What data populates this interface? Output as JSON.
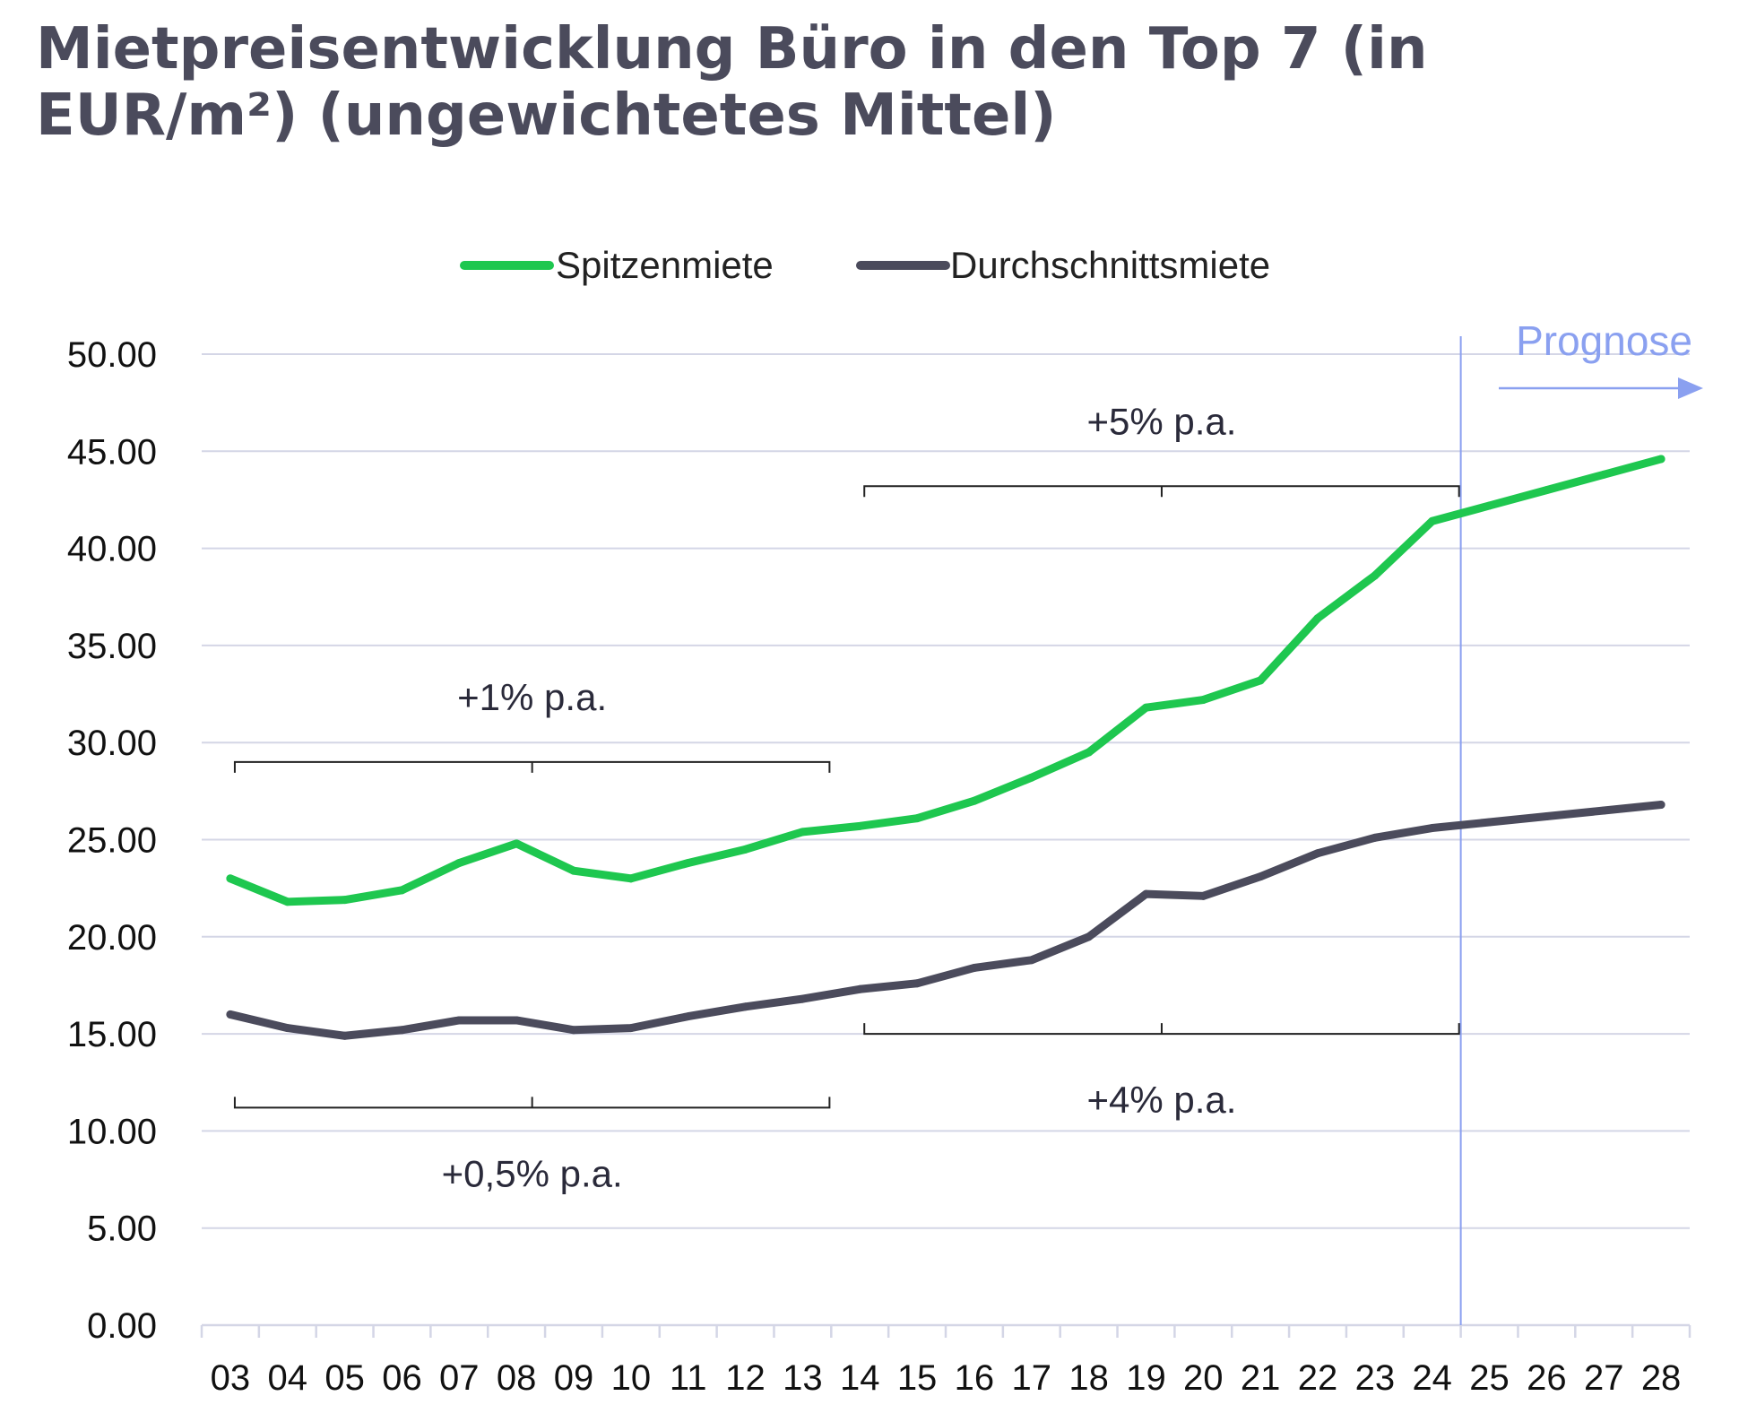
{
  "title": "Mietpreisentwicklung Büro in den Top 7 (in EUR/m²) (ungewichtetes Mittel)",
  "colors": {
    "peak": "#1ec74f",
    "average": "#4b4b5c",
    "grid": "#d4d6e6",
    "prognose": "#8aa0f0"
  },
  "chart_data": {
    "type": "line",
    "title": "Mietpreisentwicklung Büro in den Top 7 (in EUR/m²) (ungewichtetes Mittel)",
    "xlabel": "",
    "ylabel": "",
    "categories": [
      "03",
      "04",
      "05",
      "06",
      "07",
      "08",
      "09",
      "10",
      "11",
      "12",
      "13",
      "14",
      "15",
      "16",
      "17",
      "18",
      "19",
      "20",
      "21",
      "22",
      "23",
      "24",
      "25",
      "26",
      "27",
      "28"
    ],
    "y_ticks": [
      "0.00",
      "5.00",
      "10.00",
      "15.00",
      "20.00",
      "25.00",
      "30.00",
      "35.00",
      "40.00",
      "45.00",
      "50.00"
    ],
    "ylim": [
      0,
      50
    ],
    "grid": true,
    "legend_position": "top-center",
    "series": [
      {
        "name": "Spitzenmiete",
        "values": [
          23.0,
          21.8,
          21.9,
          22.4,
          23.8,
          24.8,
          23.4,
          23.0,
          23.8,
          24.5,
          25.4,
          25.7,
          26.1,
          27.0,
          28.2,
          29.5,
          31.8,
          32.2,
          33.2,
          36.4,
          38.6,
          41.4,
          42.2,
          43.0,
          43.8,
          44.6
        ]
      },
      {
        "name": "Durchschnittsmiete",
        "values": [
          16.0,
          15.3,
          14.9,
          15.2,
          15.7,
          15.7,
          15.2,
          15.3,
          15.9,
          16.4,
          16.8,
          17.3,
          17.6,
          18.4,
          18.8,
          20.0,
          22.2,
          22.1,
          23.1,
          24.3,
          25.1,
          25.6,
          25.9,
          26.2,
          26.5,
          26.8
        ]
      }
    ],
    "forecast": {
      "label": "Prognose",
      "after_category": "24"
    },
    "annotations": [
      {
        "text": "+1% p.a.",
        "series": "Spitzenmiete",
        "from": "03",
        "to": "13",
        "level": 29,
        "side": "above"
      },
      {
        "text": "+0,5% p.a.",
        "series": "Durchschnittsmiete",
        "from": "03",
        "to": "13",
        "level": 11.2,
        "side": "below"
      },
      {
        "text": "+5% p.a.",
        "series": "Spitzenmiete",
        "from": "14",
        "to": "24",
        "level": 43.2,
        "side": "above"
      },
      {
        "text": "+4% p.a.",
        "series": "Durchschnittsmiete",
        "from": "14",
        "to": "24",
        "level": 15.0,
        "side": "below"
      }
    ]
  }
}
